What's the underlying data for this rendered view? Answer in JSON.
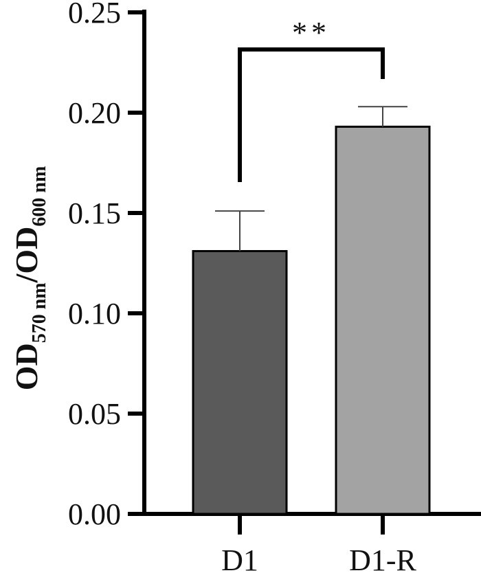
{
  "chart_data": {
    "type": "bar",
    "categories": [
      "D1",
      "D1-R"
    ],
    "values": [
      0.131,
      0.193
    ],
    "errors": [
      0.02,
      0.01
    ],
    "bar_colors": [
      "#5a5a5a",
      "#a3a3a3"
    ],
    "ylabel": {
      "main1": "OD",
      "sub1": "570 nm",
      "sep": "/OD",
      "sub2": "600 nm"
    },
    "ylim": [
      0,
      0.25
    ],
    "yticks": [
      "0.00",
      "0.05",
      "0.10",
      "0.15",
      "0.20",
      "0.25"
    ],
    "significance": {
      "pair": [
        0,
        1
      ],
      "label": "**"
    },
    "grid": false,
    "legend": "none"
  }
}
